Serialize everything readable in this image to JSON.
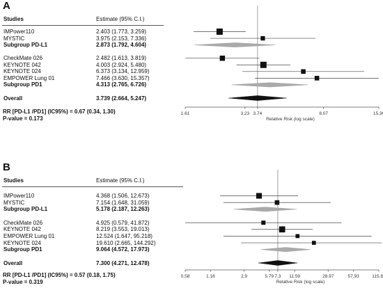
{
  "chart_data": [
    {
      "type": "forest",
      "panel": "A",
      "columns": {
        "studies": "Studies",
        "estimate": "Estimate (95% C.I.)"
      },
      "rows": [
        {
          "label": "IMPower110",
          "estimate_text": "2.403 (1.773, 3.259)",
          "est": 2.403,
          "lo": 1.773,
          "hi": 3.259,
          "kind": "study",
          "weight": 1.0
        },
        {
          "label": "MYSTIC",
          "estimate_text": "3.975 (2.153, 7.336)",
          "est": 3.975,
          "lo": 2.153,
          "hi": 7.336,
          "kind": "study",
          "weight": 0.55
        },
        {
          "label": "Subgroup PD-L1",
          "estimate_text": "2.873 (1.792, 4.604)",
          "est": 2.873,
          "lo": 1.792,
          "hi": 4.604,
          "kind": "subgroup"
        },
        {
          "label": "",
          "estimate_text": "",
          "kind": "spacer"
        },
        {
          "label": "CheckMate 026",
          "estimate_text": "2.482 (1.613, 3.819)",
          "est": 2.482,
          "lo": 1.613,
          "hi": 3.819,
          "kind": "study",
          "weight": 0.75
        },
        {
          "label": "KEYNOTE 042",
          "estimate_text": "4.003 (2.924, 5.480)",
          "est": 4.003,
          "lo": 2.924,
          "hi": 5.48,
          "kind": "study",
          "weight": 1.0
        },
        {
          "label": "KEYNOTE 024",
          "estimate_text": "6.373 (3.134, 12.959)",
          "est": 6.373,
          "lo": 3.134,
          "hi": 12.959,
          "kind": "study",
          "weight": 0.6
        },
        {
          "label": "EMPOWER Lung 01",
          "estimate_text": "7.466 (3.630, 15.357)",
          "est": 7.466,
          "lo": 3.63,
          "hi": 15.357,
          "kind": "study",
          "weight": 0.6
        },
        {
          "label": "Subgroup PD1",
          "estimate_text": "4.313 (2.765, 6.726)",
          "est": 4.313,
          "lo": 2.765,
          "hi": 6.726,
          "kind": "subgroup"
        },
        {
          "label": "",
          "estimate_text": "",
          "kind": "spacer"
        },
        {
          "label": "Overall",
          "estimate_text": "3.739 (2.664, 5.247)",
          "est": 3.739,
          "lo": 2.664,
          "hi": 5.247,
          "kind": "overall"
        }
      ],
      "footer": [
        "RR [PD-L1 /PD1] (IC95%)  = 0.67 (0.34, 1.30)",
        "P-value = 0.173"
      ],
      "xaxis": {
        "label": "Relative Risk (log scale)",
        "scale": "log",
        "ticks": [
          1.61,
          3.23,
          3.74,
          8.07,
          15.36
        ],
        "tick_labels": [
          "1.61",
          "3.23",
          "3.74",
          "8.07",
          "15.36"
        ],
        "range": [
          1.61,
          15.36
        ],
        "reference": 3.739
      }
    },
    {
      "type": "forest",
      "panel": "B",
      "columns": {
        "studies": "Studies",
        "estimate": "Estimate (95% C.I.)"
      },
      "rows": [
        {
          "label": "IMPower110",
          "estimate_text": "4.368 (1.506, 12.673)",
          "est": 4.368,
          "lo": 1.506,
          "hi": 12.673,
          "kind": "study",
          "weight": 0.85
        },
        {
          "label": "MYSTIC",
          "estimate_text": "7.154 (1.648, 31.059)",
          "est": 7.154,
          "lo": 1.648,
          "hi": 31.059,
          "kind": "study",
          "weight": 0.6
        },
        {
          "label": "Subgroup PD-L1",
          "estimate_text": "5.178 (2.187, 12.263)",
          "est": 5.178,
          "lo": 2.187,
          "hi": 12.263,
          "kind": "subgroup"
        },
        {
          "label": "",
          "estimate_text": "",
          "kind": "spacer"
        },
        {
          "label": "CheckMate 026",
          "estimate_text": "4.925 (0.579, 41.872)",
          "est": 4.925,
          "lo": 0.579,
          "hi": 41.872,
          "kind": "study",
          "weight": 0.5
        },
        {
          "label": "KEYNOTE 042",
          "estimate_text": "8.219 (3.553, 19.013)",
          "est": 8.219,
          "lo": 3.553,
          "hi": 19.013,
          "kind": "study",
          "weight": 0.95
        },
        {
          "label": "EMPOWER Lung 01",
          "estimate_text": "12.524 (1.647, 95.218)",
          "est": 12.524,
          "lo": 1.647,
          "hi": 95.218,
          "kind": "study",
          "weight": 0.45
        },
        {
          "label": "KEYNOTE 024",
          "estimate_text": "19.610 (2.665, 144.292)",
          "est": 19.61,
          "lo": 2.665,
          "hi": 144.292,
          "kind": "study",
          "weight": 0.45
        },
        {
          "label": "Subgroup PD1",
          "estimate_text": "9.064 (4.572, 17.973)",
          "est": 9.064,
          "lo": 4.572,
          "hi": 17.973,
          "kind": "subgroup"
        },
        {
          "label": "",
          "estimate_text": "",
          "kind": "spacer"
        },
        {
          "label": "Overall",
          "estimate_text": "7.300 (4.271, 12.478)",
          "est": 7.3,
          "lo": 4.271,
          "hi": 12.478,
          "kind": "overall"
        }
      ],
      "footer": [
        "RR [PD-L1 /PD1] (IC95%)  = 0.57 (0.18, 1.75)",
        "P-value = 0.319"
      ],
      "xaxis": {
        "label": "Relative Risk (log scale)",
        "scale": "log",
        "ticks": [
          0.58,
          1.16,
          2.9,
          5.79,
          7.3,
          11.59,
          28.97,
          57.93,
          115.86
        ],
        "tick_labels": [
          "0.58",
          "1.16",
          "2.9",
          "5.79",
          "7.3",
          "11.59",
          "28.97",
          "57.93",
          "115.86"
        ],
        "range": [
          0.58,
          115.86
        ],
        "reference": 7.3
      }
    }
  ]
}
